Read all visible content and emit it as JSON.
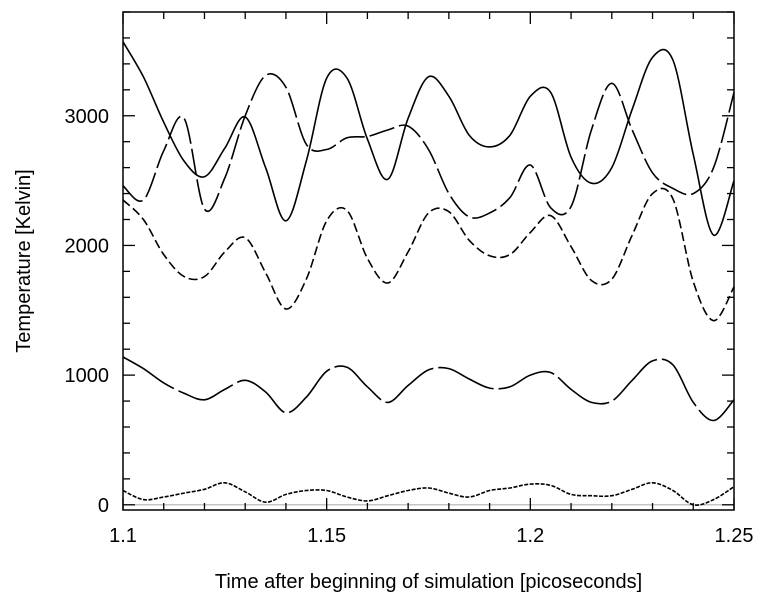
{
  "chart_data": {
    "type": "line",
    "title": "",
    "xlabel": "Time after beginning of simulation [picoseconds]",
    "ylabel": "Temperature [Kelvin]",
    "xlim": [
      1.1,
      1.25
    ],
    "ylim": [
      -40,
      3800
    ],
    "xticks": [
      1.1,
      1.15,
      1.2,
      1.25
    ],
    "xtick_labels": [
      "1.1",
      "1.15",
      "1.2",
      "1.25"
    ],
    "yticks": [
      0,
      1000,
      2000,
      3000
    ],
    "ytick_labels": [
      "0",
      "1000",
      "2000",
      "3000"
    ],
    "grid": false,
    "legend": "none",
    "reference_line": {
      "y": 0,
      "color": "#b0b0b0"
    },
    "series": [
      {
        "style": "solid",
        "x": [
          1.1,
          1.105,
          1.11,
          1.115,
          1.12,
          1.125,
          1.13,
          1.135,
          1.14,
          1.145,
          1.15,
          1.155,
          1.16,
          1.165,
          1.17,
          1.175,
          1.18,
          1.185,
          1.19,
          1.195,
          1.2,
          1.205,
          1.21,
          1.215,
          1.22,
          1.225,
          1.23,
          1.235,
          1.24,
          1.245,
          1.25
        ],
        "y": [
          3570,
          3300,
          2950,
          2650,
          2530,
          2750,
          2990,
          2600,
          2190,
          2650,
          3290,
          3290,
          2820,
          2510,
          2980,
          3300,
          3150,
          2850,
          2760,
          2850,
          3150,
          3180,
          2680,
          2480,
          2600,
          3050,
          3450,
          3430,
          2700,
          2080,
          2500
        ]
      },
      {
        "style": "long-dash",
        "x": [
          1.1,
          1.105,
          1.11,
          1.115,
          1.12,
          1.125,
          1.13,
          1.135,
          1.14,
          1.145,
          1.15,
          1.155,
          1.16,
          1.165,
          1.17,
          1.175,
          1.18,
          1.185,
          1.19,
          1.195,
          1.2,
          1.205,
          1.21,
          1.215,
          1.22,
          1.225,
          1.23,
          1.235,
          1.24,
          1.245,
          1.25
        ],
        "y": [
          2460,
          2350,
          2730,
          2980,
          2280,
          2520,
          3000,
          3310,
          3220,
          2780,
          2740,
          2830,
          2840,
          2890,
          2920,
          2740,
          2400,
          2220,
          2250,
          2370,
          2620,
          2290,
          2300,
          2890,
          3250,
          2890,
          2560,
          2440,
          2400,
          2600,
          3180
        ]
      },
      {
        "style": "medium-dash",
        "x": [
          1.1,
          1.105,
          1.11,
          1.115,
          1.12,
          1.125,
          1.13,
          1.135,
          1.14,
          1.145,
          1.15,
          1.155,
          1.16,
          1.165,
          1.17,
          1.175,
          1.18,
          1.185,
          1.19,
          1.195,
          1.2,
          1.205,
          1.21,
          1.215,
          1.22,
          1.225,
          1.23,
          1.235,
          1.24,
          1.245,
          1.25
        ],
        "y": [
          2350,
          2200,
          1930,
          1760,
          1760,
          1950,
          2060,
          1790,
          1510,
          1740,
          2190,
          2270,
          1900,
          1710,
          1950,
          2250,
          2260,
          2040,
          1920,
          1930,
          2100,
          2230,
          1990,
          1730,
          1740,
          2080,
          2400,
          2360,
          1720,
          1420,
          1680
        ]
      },
      {
        "style": "dash-dot",
        "x": [
          1.1,
          1.105,
          1.11,
          1.115,
          1.12,
          1.125,
          1.13,
          1.135,
          1.14,
          1.145,
          1.15,
          1.155,
          1.16,
          1.165,
          1.17,
          1.175,
          1.18,
          1.185,
          1.19,
          1.195,
          1.2,
          1.205,
          1.21,
          1.215,
          1.22,
          1.225,
          1.23,
          1.235,
          1.24,
          1.245,
          1.25
        ],
        "y": [
          1140,
          1050,
          940,
          860,
          810,
          890,
          960,
          870,
          710,
          830,
          1030,
          1060,
          910,
          790,
          920,
          1040,
          1050,
          970,
          900,
          910,
          1000,
          1020,
          890,
          790,
          800,
          960,
          1110,
          1080,
          790,
          650,
          810
        ]
      },
      {
        "style": "dotted",
        "x": [
          1.1,
          1.105,
          1.11,
          1.115,
          1.12,
          1.125,
          1.13,
          1.135,
          1.14,
          1.145,
          1.15,
          1.155,
          1.16,
          1.165,
          1.17,
          1.175,
          1.18,
          1.185,
          1.19,
          1.195,
          1.2,
          1.205,
          1.21,
          1.215,
          1.22,
          1.225,
          1.23,
          1.235,
          1.24,
          1.245,
          1.25
        ],
        "y": [
          110,
          40,
          60,
          90,
          120,
          170,
          100,
          20,
          80,
          110,
          110,
          60,
          30,
          70,
          110,
          130,
          90,
          60,
          110,
          130,
          160,
          150,
          80,
          70,
          70,
          120,
          170,
          110,
          0,
          40,
          140
        ]
      }
    ]
  }
}
